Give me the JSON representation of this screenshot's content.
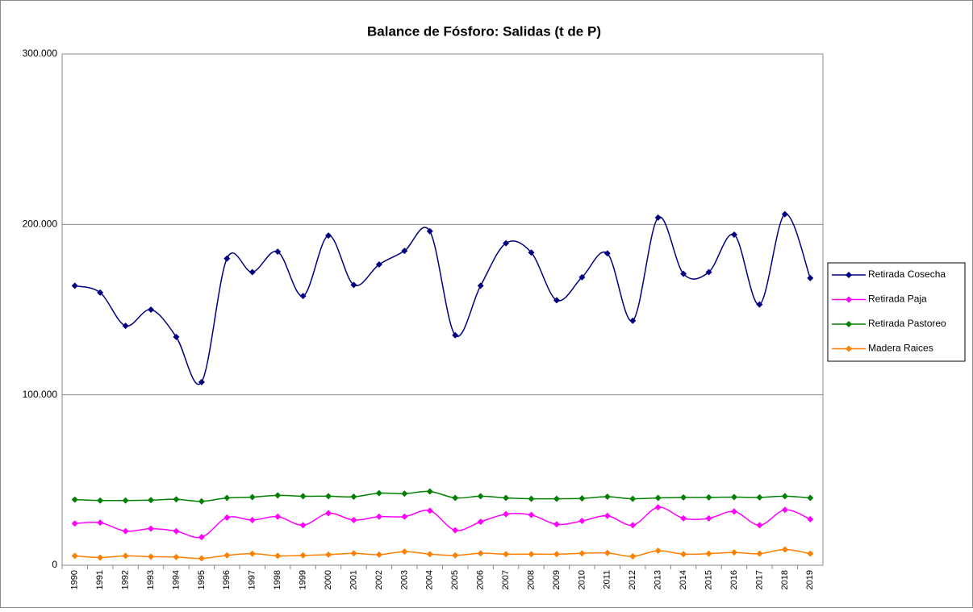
{
  "chart_data": {
    "type": "line",
    "title": "Balance de Fósforo: Salidas (t de P)",
    "categories": [
      "1990",
      "1991",
      "1992",
      "1993",
      "1994",
      "1995",
      "1996",
      "1997",
      "1998",
      "1999",
      "2000",
      "2001",
      "2002",
      "2003",
      "2004",
      "2005",
      "2006",
      "2007",
      "2008",
      "2009",
      "2010",
      "2011",
      "2012",
      "2013",
      "2014",
      "2015",
      "2016",
      "2017",
      "2018",
      "2019"
    ],
    "series": [
      {
        "name": "Retirada Cosecha",
        "color": "#000080",
        "values": [
          164000,
          160000,
          140500,
          150000,
          134000,
          107500,
          180000,
          172000,
          184000,
          158000,
          193500,
          164500,
          176500,
          184500,
          196000,
          135000,
          164000,
          189000,
          183500,
          155500,
          169000,
          183000,
          143500,
          204000,
          171000,
          172000,
          194000,
          153000,
          206000,
          168500
        ]
      },
      {
        "name": "Retirada Paja",
        "color": "#ff00ff",
        "values": [
          24500,
          25000,
          20000,
          21500,
          20000,
          16500,
          28000,
          26500,
          28500,
          23500,
          30500,
          26500,
          28500,
          28500,
          32000,
          20500,
          25500,
          30000,
          29500,
          24000,
          26000,
          29000,
          23500,
          34000,
          27500,
          27500,
          31500,
          23500,
          32500,
          27000
        ]
      },
      {
        "name": "Retirada Pastoreo",
        "color": "#008000",
        "values": [
          38500,
          38000,
          38000,
          38200,
          38700,
          37500,
          39500,
          40000,
          41000,
          40500,
          40500,
          40200,
          42300,
          42000,
          43300,
          39500,
          40500,
          39500,
          39000,
          39000,
          39200,
          40200,
          39000,
          39500,
          39800,
          39800,
          40000,
          39800,
          40500,
          39500
        ]
      },
      {
        "name": "Madera Raices",
        "color": "#ff7f00",
        "values": [
          5500,
          4500,
          5500,
          5000,
          4800,
          4000,
          5800,
          6800,
          5500,
          5800,
          6200,
          7000,
          6200,
          8000,
          6500,
          5800,
          7000,
          6500,
          6500,
          6500,
          7000,
          7200,
          5200,
          8500,
          6500,
          6800,
          7500,
          6800,
          9200,
          6800
        ]
      }
    ],
    "ylim": [
      0,
      300000
    ],
    "yticks": [
      {
        "value": 0,
        "label": "0"
      },
      {
        "value": 100000,
        "label": "100.000"
      },
      {
        "value": 200000,
        "label": "200.000"
      },
      {
        "value": 300000,
        "label": "300.000"
      }
    ],
    "grid": true,
    "smooth": true,
    "legend": "right"
  }
}
